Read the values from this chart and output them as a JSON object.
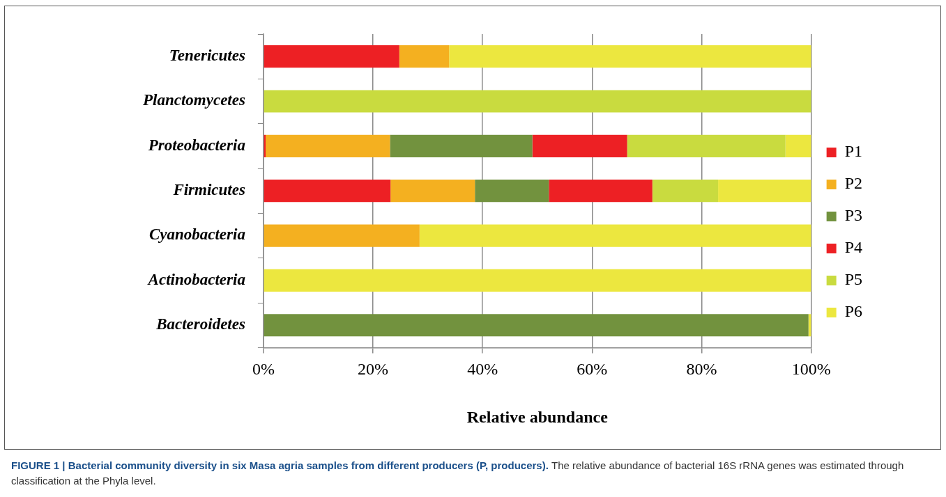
{
  "chart_data": {
    "type": "bar",
    "orientation": "horizontal",
    "stacked": true,
    "xlabel": "Relative abundance",
    "categories": [
      "Tenericutes",
      "Planctomycetes",
      "Proteobacteria",
      "Firmicutes",
      "Cyanobacteria",
      "Actinobacteria",
      "Bacteroidetes"
    ],
    "series": [
      {
        "name": "P1",
        "color": "#ed2024",
        "values": [
          24.8,
          0,
          0.4,
          23.2,
          0,
          0,
          0
        ]
      },
      {
        "name": "P2",
        "color": "#f4b020",
        "values": [
          9.1,
          0,
          22.7,
          15.4,
          28.5,
          0,
          0
        ]
      },
      {
        "name": "P3",
        "color": "#72923e",
        "values": [
          0,
          0,
          26,
          13.5,
          0,
          0,
          99.5
        ]
      },
      {
        "name": "P4",
        "color": "#ed2024",
        "values": [
          0,
          0,
          17.3,
          18.9,
          0,
          0,
          0
        ]
      },
      {
        "name": "P5",
        "color": "#c9db3f",
        "values": [
          0,
          100,
          28.9,
          12,
          0,
          0,
          0
        ]
      },
      {
        "name": "P6",
        "color": "#ece73f",
        "values": [
          66.1,
          0,
          4.7,
          17,
          71.5,
          100,
          0.5
        ]
      }
    ],
    "xlim": [
      0,
      100
    ],
    "xticks": [
      {
        "value": 0,
        "label": "0%"
      },
      {
        "value": 20,
        "label": "20%"
      },
      {
        "value": 40,
        "label": "40%"
      },
      {
        "value": 60,
        "label": "60%"
      },
      {
        "value": 80,
        "label": "80%"
      },
      {
        "value": 100,
        "label": "100%"
      }
    ],
    "grid": "x",
    "legend": "right",
    "annotations": [
      "FIGURE 1 | Bacterial community diversity in six Masa agria samples from different producers (P, producers).",
      "The relative abundance of bacterial 16S rRNA genes was estimated through classification at the Phyla level."
    ]
  }
}
